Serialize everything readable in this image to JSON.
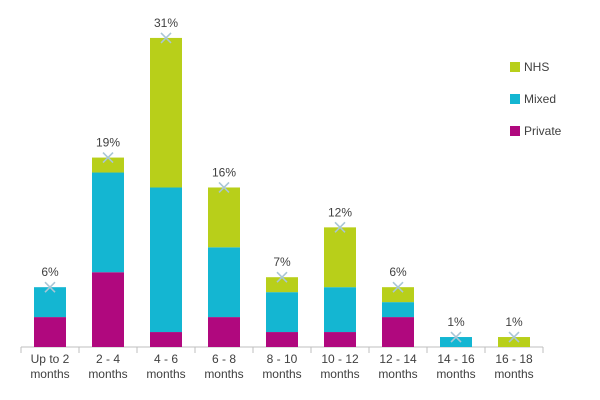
{
  "chart_data": {
    "type": "stacked-bar",
    "categories": [
      "Up to 2 months",
      "2 - 4 months",
      "4 - 6 months",
      "6 - 8 months",
      "8 - 10 months",
      "10 - 12 months",
      "12 - 14 months",
      "14 - 16 months",
      "16 - 18 months"
    ],
    "series": [
      {
        "name": "Private",
        "color": "#b0087e",
        "values": [
          3,
          7.5,
          1.5,
          3,
          1.5,
          1.5,
          3,
          0,
          0
        ]
      },
      {
        "name": "Mixed",
        "color": "#14b6d2",
        "values": [
          3,
          10,
          14.5,
          7,
          4,
          4.5,
          1.5,
          1,
          0
        ]
      },
      {
        "name": "NHS",
        "color": "#b8cf1a",
        "values": [
          0,
          1.5,
          15,
          6,
          1.5,
          6,
          1.5,
          0,
          1
        ]
      }
    ],
    "totals": [
      6,
      19,
      31,
      16,
      7,
      12,
      6,
      1,
      1
    ],
    "value_labels": [
      "6%",
      "19%",
      "31%",
      "16%",
      "7%",
      "12%",
      "6%",
      "1%",
      "1%"
    ],
    "legend": "right"
  }
}
